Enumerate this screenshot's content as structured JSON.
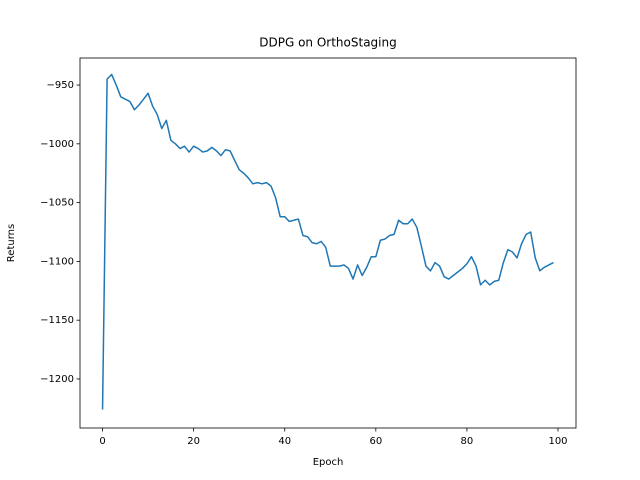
{
  "chart_data": {
    "type": "line",
    "title": "DDPG on OrthoStaging",
    "x_label": "Epoch",
    "y_label": "Returns",
    "series": [
      {
        "color": "#1f77b4",
        "x": [
          0,
          1,
          2,
          3,
          4,
          5,
          6,
          7,
          8,
          9,
          10,
          11,
          12,
          13,
          14,
          15,
          16,
          17,
          18,
          19,
          20,
          21,
          22,
          23,
          24,
          25,
          26,
          27,
          28,
          29,
          30,
          31,
          32,
          33,
          34,
          35,
          36,
          37,
          38,
          39,
          40,
          41,
          42,
          43,
          44,
          45,
          46,
          47,
          48,
          49,
          50,
          51,
          52,
          53,
          54,
          55,
          56,
          57,
          58,
          59,
          60,
          61,
          62,
          63,
          64,
          65,
          66,
          67,
          68,
          69,
          70,
          71,
          72,
          73,
          74,
          75,
          76,
          77,
          78,
          79,
          80,
          81,
          82,
          83,
          84,
          85,
          86,
          87,
          88,
          89,
          90,
          91,
          92,
          93,
          94,
          95,
          96,
          97,
          98,
          99
        ],
        "values": [
          -1226,
          -945,
          -941,
          -950,
          -960,
          -962,
          -964,
          -971,
          -967,
          -962,
          -957,
          -968,
          -975,
          -987,
          -980,
          -997,
          -1000,
          -1004,
          -1002,
          -1007,
          -1002,
          -1004,
          -1007,
          -1006,
          -1003,
          -1006,
          -1010,
          -1005,
          -1006,
          -1014,
          -1022,
          -1025,
          -1029,
          -1034,
          -1033,
          -1034,
          -1033,
          -1036,
          -1046,
          -1062,
          -1062,
          -1066,
          -1065,
          -1064,
          -1078,
          -1079,
          -1084,
          -1085,
          -1083,
          -1088,
          -1104,
          -1104,
          -1104,
          -1103,
          -1106,
          -1115,
          -1103,
          -1112,
          -1105,
          -1096,
          -1096,
          -1082,
          -1081,
          -1078,
          -1077,
          -1065,
          -1068,
          -1068,
          -1064,
          -1071,
          -1087,
          -1104,
          -1108,
          -1101,
          -1104,
          -1113,
          -1115,
          -1112,
          -1109,
          -1106,
          -1102,
          -1096,
          -1104,
          -1120,
          -1116,
          -1120,
          -1117,
          -1116,
          -1101,
          -1090,
          -1092,
          -1097,
          -1085,
          -1077,
          -1075,
          -1097,
          -1108,
          -1105,
          -1103,
          -1101
        ]
      }
    ],
    "xlim": [
      -4.95,
      103.95
    ],
    "ylim": [
      -1241.7,
      -927
    ],
    "xticks": [
      0,
      20,
      40,
      60,
      80,
      100
    ],
    "yticks": [
      {
        "value": -1200,
        "label": "−1200"
      },
      {
        "value": -1150,
        "label": "−1150"
      },
      {
        "value": -1100,
        "label": "−1100"
      },
      {
        "value": -1050,
        "label": "−1050"
      },
      {
        "value": -1000,
        "label": "−1000"
      },
      {
        "value": -950,
        "label": "−950"
      }
    ]
  }
}
